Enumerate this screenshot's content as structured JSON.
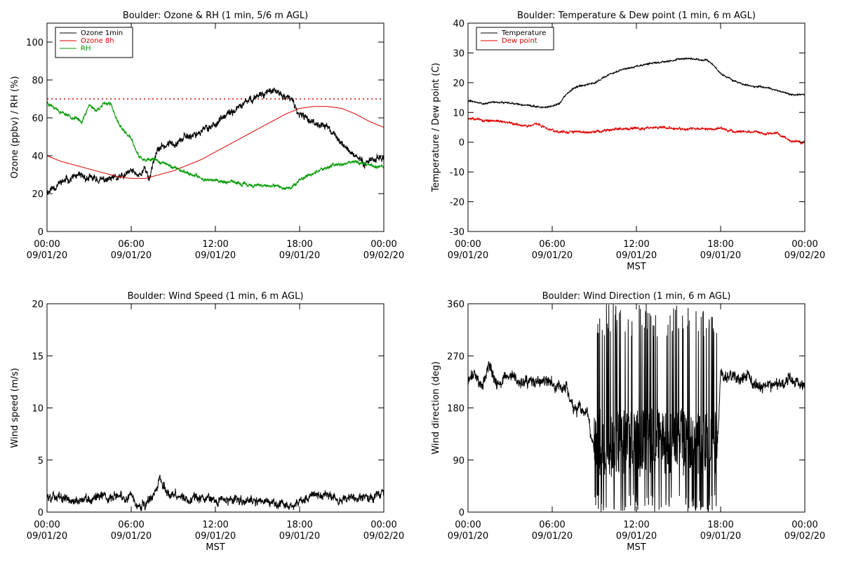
{
  "panels": [
    {
      "key": "ozone_rh",
      "title": "Boulder: Ozone & RH (1 min, 5/6 m AGL)",
      "ylabel": "Ozone (ppbv) / RH (%)",
      "xlabel": "",
      "legend": [
        {
          "label": "Ozone 1min",
          "color": "#000000"
        },
        {
          "label": "Ozone 8h",
          "color": "#dd0000"
        },
        {
          "label": "RH",
          "color": "#009900"
        }
      ]
    },
    {
      "key": "temp_dew",
      "title": "Boulder: Temperature & Dew point (1 min, 6 m AGL)",
      "ylabel": "Temperature / Dew point (C)",
      "xlabel": "MST",
      "legend": [
        {
          "label": "Temperature",
          "color": "#000000"
        },
        {
          "label": "Dew point",
          "color": "#dd0000"
        }
      ]
    },
    {
      "key": "wind_speed",
      "title": "Boulder: Wind Speed (1 min, 6 m AGL)",
      "ylabel": "Wind speed (m/s)",
      "xlabel": "MST",
      "legend": []
    },
    {
      "key": "wind_dir",
      "title": "Boulder: Wind Direction (1 min, 6 m AGL)",
      "ylabel": "Wind direction (deg)",
      "xlabel": "MST",
      "legend": []
    }
  ],
  "chart_data": [
    {
      "type": "line",
      "title": "Boulder: Ozone & RH (1 min, 5/6 m AGL)",
      "xlabel": "",
      "ylabel": "Ozone (ppbv) / RH (%)",
      "x_ticks": [
        [
          "00:00",
          "09/01/20"
        ],
        [
          "06:00",
          "09/01/20"
        ],
        [
          "12:00",
          "09/01/20"
        ],
        [
          "18:00",
          "09/01/20"
        ],
        [
          "00:00",
          "09/02/20"
        ]
      ],
      "xlim_hours": [
        0,
        24
      ],
      "ylim": [
        0,
        110
      ],
      "y_ticks": [
        0,
        20,
        40,
        60,
        80,
        100
      ],
      "reference_line": {
        "y": 70,
        "style": "dotted",
        "color": "#dd0000"
      },
      "legend_position": "top-left",
      "series": [
        {
          "name": "Ozone 1min",
          "color": "#000000",
          "noise": 2.5,
          "seed": 11,
          "x": [
            0,
            1,
            2,
            3,
            4,
            5,
            5.5,
            6,
            6.5,
            7,
            7.3,
            7.6,
            8,
            9,
            10,
            11,
            12,
            13,
            14,
            15,
            15.8,
            16.5,
            17.5,
            18,
            19,
            20,
            20.5,
            21,
            22,
            22.5,
            23,
            24
          ],
          "y": [
            21,
            26,
            29,
            28,
            27,
            28,
            29,
            32,
            30,
            33,
            28,
            38,
            44,
            47,
            50,
            53,
            57,
            62,
            67,
            72,
            74,
            73,
            69,
            61,
            58,
            55,
            51,
            46,
            40,
            36,
            38,
            39
          ]
        },
        {
          "name": "Ozone 8h",
          "color": "#dd0000",
          "noise": 0,
          "seed": 0,
          "x": [
            0,
            1,
            2,
            3,
            4,
            5,
            6,
            7,
            8,
            9,
            10,
            11,
            12,
            13,
            14,
            15,
            16,
            17,
            18,
            19,
            20,
            21,
            22,
            23,
            24
          ],
          "y": [
            40,
            37,
            35,
            33,
            31,
            29,
            28,
            28,
            30,
            32,
            35,
            38,
            42,
            46,
            50,
            54,
            58,
            62,
            65,
            66,
            66,
            65,
            62,
            58,
            55
          ]
        },
        {
          "name": "RH",
          "color": "#009900",
          "noise": 1.2,
          "seed": 23,
          "x": [
            0,
            0.5,
            1,
            2,
            2.5,
            3,
            3.5,
            4,
            4.5,
            5,
            5.5,
            6,
            6.5,
            7,
            7.5,
            8,
            9,
            10,
            11,
            12,
            13,
            14,
            15,
            16,
            17,
            17.5,
            18,
            19,
            20,
            21,
            22,
            23,
            24
          ],
          "y": [
            68,
            66,
            63,
            60,
            58,
            67,
            64,
            67,
            68,
            58,
            53,
            49,
            40,
            37,
            38,
            37,
            34,
            31,
            28,
            27,
            26,
            25,
            24,
            24,
            23,
            24,
            27,
            31,
            34,
            36,
            37,
            35,
            34
          ]
        }
      ]
    },
    {
      "type": "line",
      "title": "Boulder: Temperature & Dew point (1 min, 6 m AGL)",
      "xlabel": "MST",
      "ylabel": "Temperature / Dew point (C)",
      "x_ticks": [
        [
          "00:00",
          "09/01/20"
        ],
        [
          "06:00",
          "09/01/20"
        ],
        [
          "12:00",
          "09/01/20"
        ],
        [
          "18:00",
          "09/01/20"
        ],
        [
          "00:00",
          "09/02/20"
        ]
      ],
      "xlim_hours": [
        0,
        24
      ],
      "ylim": [
        -30,
        40
      ],
      "y_ticks": [
        -30,
        -20,
        -10,
        0,
        10,
        20,
        30,
        40
      ],
      "legend_position": "top-left",
      "series": [
        {
          "name": "Temperature",
          "color": "#000000",
          "noise": 0.35,
          "seed": 31,
          "x": [
            0,
            1,
            2,
            3,
            4,
            5,
            5.5,
            6,
            6.5,
            7,
            7.5,
            8,
            9,
            10,
            11,
            12,
            13,
            14,
            15,
            16,
            17,
            17.5,
            18,
            19,
            20,
            21,
            22,
            23,
            24
          ],
          "y": [
            14,
            13,
            13.5,
            13,
            12.5,
            12,
            11.7,
            12,
            13,
            16,
            18,
            19,
            20,
            22.5,
            24.5,
            25.5,
            26.5,
            27,
            28,
            28,
            27.5,
            26,
            23,
            20.5,
            19,
            18.5,
            17.5,
            16,
            16
          ]
        },
        {
          "name": "Dew point",
          "color": "#dd0000",
          "noise": 0.5,
          "seed": 47,
          "x": [
            0,
            1,
            2,
            3,
            4,
            5,
            5.5,
            6,
            6.5,
            7,
            8,
            9,
            10,
            11,
            12,
            13,
            14,
            15,
            16,
            17,
            18,
            19,
            20,
            21,
            22,
            22.5,
            23,
            24
          ],
          "y": [
            8,
            7.5,
            7,
            6.5,
            5.5,
            6,
            5,
            4,
            3.5,
            3.5,
            3.5,
            3.5,
            4,
            4.5,
            4.5,
            5,
            5,
            4.5,
            4.5,
            4.5,
            4.5,
            3.5,
            3.5,
            3,
            3,
            2,
            0.5,
            0
          ]
        }
      ]
    },
    {
      "type": "line",
      "title": "Boulder: Wind Speed (1 min, 6 m AGL)",
      "xlabel": "MST",
      "ylabel": "Wind speed (m/s)",
      "x_ticks": [
        [
          "00:00",
          "09/01/20"
        ],
        [
          "06:00",
          "09/01/20"
        ],
        [
          "12:00",
          "09/01/20"
        ],
        [
          "18:00",
          "09/01/20"
        ],
        [
          "00:00",
          "09/02/20"
        ]
      ],
      "xlim_hours": [
        0,
        24
      ],
      "ylim": [
        0,
        20
      ],
      "y_ticks": [
        0,
        5,
        10,
        15,
        20
      ],
      "series": [
        {
          "name": "",
          "color": "#000000",
          "noise": 0.6,
          "seed": 59,
          "x": [
            0,
            1,
            2,
            3,
            4,
            5,
            6,
            6.5,
            7,
            7.5,
            8,
            8.5,
            9,
            10,
            11,
            12,
            13,
            14,
            15,
            16,
            17,
            17.5,
            18,
            19,
            20,
            21,
            22,
            23,
            24
          ],
          "y": [
            1.4,
            1.6,
            1.1,
            1.3,
            1.6,
            1.6,
            1.4,
            0.8,
            0.6,
            1.2,
            3.2,
            2.2,
            1.6,
            1.2,
            1.4,
            1.4,
            1.2,
            1.2,
            1.0,
            0.9,
            0.6,
            0.5,
            1.0,
            1.6,
            1.8,
            1.2,
            1.4,
            1.6,
            1.5
          ]
        }
      ]
    },
    {
      "type": "line",
      "title": "Boulder: Wind Direction (1 min, 6 m AGL)",
      "xlabel": "MST",
      "ylabel": "Wind direction (deg)",
      "x_ticks": [
        [
          "00:00",
          "09/01/20"
        ],
        [
          "06:00",
          "09/01/20"
        ],
        [
          "12:00",
          "09/01/20"
        ],
        [
          "18:00",
          "09/01/20"
        ],
        [
          "00:00",
          "09/02/20"
        ]
      ],
      "xlim_hours": [
        0,
        24
      ],
      "ylim": [
        0,
        360
      ],
      "y_ticks": [
        0,
        90,
        180,
        270,
        360
      ],
      "series": [
        {
          "name": "",
          "color": "#000000",
          "noise": 14,
          "seed": 71,
          "erratic_hours": [
            9,
            17.8
          ],
          "x": [
            0,
            0.5,
            1,
            1.5,
            2,
            3,
            4,
            5,
            6,
            7,
            7.5,
            8,
            8.5,
            9,
            12,
            15,
            17.8,
            18,
            19,
            20,
            21,
            22,
            23,
            24
          ],
          "y": [
            225,
            240,
            215,
            255,
            220,
            235,
            220,
            225,
            220,
            215,
            180,
            175,
            165,
            100,
            110,
            100,
            120,
            240,
            235,
            230,
            215,
            225,
            230,
            220
          ]
        }
      ]
    }
  ]
}
